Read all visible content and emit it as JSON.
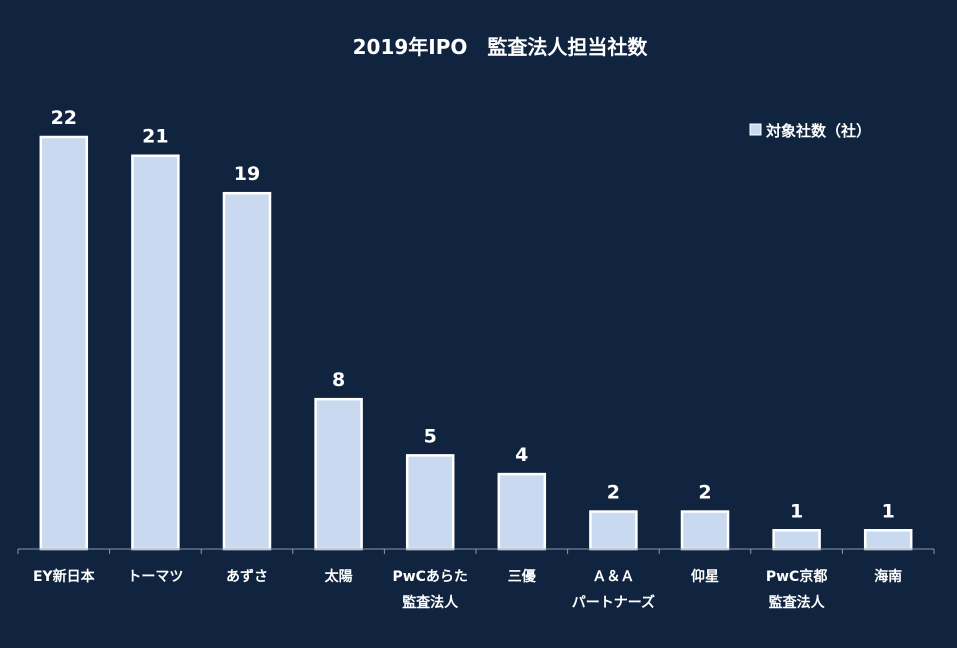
{
  "chart_data": {
    "type": "bar",
    "title": "2019年IPO　監査法人担当社数",
    "categories": [
      [
        "EY新日本"
      ],
      [
        "トーマツ"
      ],
      [
        "あずさ"
      ],
      [
        "太陽"
      ],
      [
        "PwCあらた",
        "監査法人"
      ],
      [
        "三優"
      ],
      [
        "Ａ＆Ａ",
        "パートナーズ"
      ],
      [
        "仰星"
      ],
      [
        "PwC京都",
        "監査法人"
      ],
      [
        "海南"
      ]
    ],
    "series": [
      {
        "name": "対象社数（社）",
        "values": [
          22,
          21,
          19,
          8,
          5,
          4,
          2,
          2,
          1,
          1
        ]
      }
    ],
    "ylim": [
      0,
      22
    ],
    "legend": "top-right",
    "grid": false,
    "colors": {
      "background": "#10243f",
      "bar_fill": "#c9d9f0",
      "bar_stroke": "#ffffff",
      "text": "#ffffff"
    }
  }
}
